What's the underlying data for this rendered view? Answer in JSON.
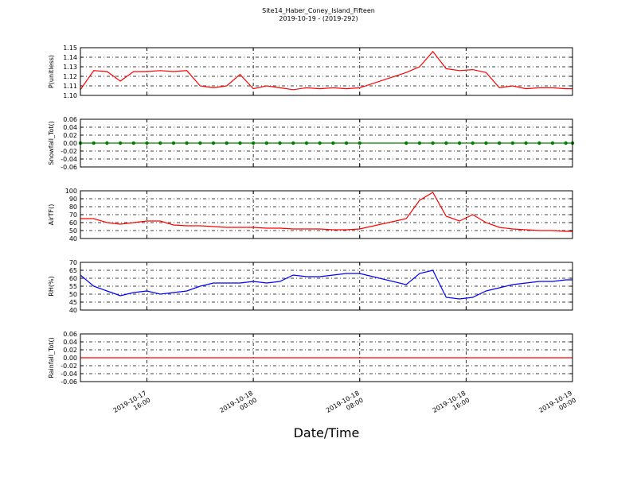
{
  "figure": {
    "title": "Site14_Haber_Coney_Island_Fifteen",
    "subtitle": "2019-10-19 - (2019-292)",
    "xlabel": "Date/Time",
    "xlim": [
      "2019-10-17 11:00",
      "2019-10-19 00:00"
    ],
    "xticks": [
      {
        "value": "2019-10-17 16:00",
        "label": "2019-10-17\n16:00"
      },
      {
        "value": "2019-10-18 00:00",
        "label": "2019-10-18\n00:00"
      },
      {
        "value": "2019-10-18 08:00",
        "label": "2019-10-18\n08:00"
      },
      {
        "value": "2019-10-18 16:00",
        "label": "2019-10-18\n16:00"
      },
      {
        "value": "2019-10-19 00:00",
        "label": "2019-10-19\n00:00"
      }
    ],
    "grid": true
  },
  "chart_data": [
    {
      "type": "line",
      "ylabel": "P(unitless)",
      "color": "#ff0000",
      "marker": false,
      "x": [
        "2019-10-17 11:00",
        "2019-10-17 12:00",
        "2019-10-17 13:00",
        "2019-10-17 14:00",
        "2019-10-17 15:00",
        "2019-10-17 16:00",
        "2019-10-17 17:00",
        "2019-10-17 18:00",
        "2019-10-17 19:00",
        "2019-10-17 20:00",
        "2019-10-17 21:00",
        "2019-10-17 22:00",
        "2019-10-17 23:00",
        "2019-10-18 00:00",
        "2019-10-18 01:00",
        "2019-10-18 02:00",
        "2019-10-18 03:00",
        "2019-10-18 04:00",
        "2019-10-18 05:00",
        "2019-10-18 06:00",
        "2019-10-18 07:00",
        "2019-10-18 08:00",
        "2019-10-18 11:30",
        "2019-10-18 12:30",
        "2019-10-18 13:30",
        "2019-10-18 14:30",
        "2019-10-18 15:30",
        "2019-10-18 16:30",
        "2019-10-18 17:30",
        "2019-10-18 18:30",
        "2019-10-18 19:30",
        "2019-10-18 20:30",
        "2019-10-18 21:30",
        "2019-10-18 22:30",
        "2019-10-18 23:30",
        "2019-10-19 00:00"
      ],
      "values": [
        1.106,
        1.126,
        1.125,
        1.115,
        1.125,
        1.125,
        1.126,
        1.125,
        1.126,
        1.11,
        1.108,
        1.11,
        1.122,
        1.107,
        1.11,
        1.108,
        1.106,
        1.108,
        1.107,
        1.108,
        1.107,
        1.108,
        1.124,
        1.13,
        1.146,
        1.128,
        1.126,
        1.127,
        1.124,
        1.108,
        1.11,
        1.107,
        1.108,
        1.108,
        1.107,
        1.107
      ],
      "ylim": [
        1.1,
        1.15
      ],
      "yticks": [
        {
          "value": 1.1,
          "label": "1.10"
        },
        {
          "value": 1.11,
          "label": "1.11"
        },
        {
          "value": 1.12,
          "label": "1.12"
        },
        {
          "value": 1.13,
          "label": "1.13"
        },
        {
          "value": 1.14,
          "label": "1.14"
        },
        {
          "value": 1.15,
          "label": "1.15"
        }
      ]
    },
    {
      "type": "line",
      "ylabel": "Snowfall_Tot()",
      "color": "#008000",
      "marker": true,
      "x": [
        "2019-10-17 11:00",
        "2019-10-17 12:00",
        "2019-10-17 13:00",
        "2019-10-17 14:00",
        "2019-10-17 15:00",
        "2019-10-17 16:00",
        "2019-10-17 17:00",
        "2019-10-17 18:00",
        "2019-10-17 19:00",
        "2019-10-17 20:00",
        "2019-10-17 21:00",
        "2019-10-17 22:00",
        "2019-10-17 23:00",
        "2019-10-18 00:00",
        "2019-10-18 01:00",
        "2019-10-18 02:00",
        "2019-10-18 03:00",
        "2019-10-18 04:00",
        "2019-10-18 05:00",
        "2019-10-18 06:00",
        "2019-10-18 07:00",
        "2019-10-18 08:00",
        "2019-10-18 11:30",
        "2019-10-18 12:30",
        "2019-10-18 13:30",
        "2019-10-18 14:30",
        "2019-10-18 15:30",
        "2019-10-18 16:30",
        "2019-10-18 17:30",
        "2019-10-18 18:30",
        "2019-10-18 19:30",
        "2019-10-18 20:30",
        "2019-10-18 21:30",
        "2019-10-18 22:30",
        "2019-10-18 23:30",
        "2019-10-19 00:00"
      ],
      "values": [
        0,
        0,
        0,
        0,
        0,
        0,
        0,
        0,
        0,
        0,
        0,
        0,
        0,
        0,
        0,
        0,
        0,
        0,
        0,
        0,
        0,
        0,
        0,
        0,
        0,
        0,
        0,
        0,
        0,
        0,
        0,
        0,
        0,
        0,
        0,
        0
      ],
      "ylim": [
        -0.06,
        0.06
      ],
      "yticks": [
        {
          "value": -0.06,
          "label": "-0.06"
        },
        {
          "value": -0.04,
          "label": "-0.04"
        },
        {
          "value": -0.02,
          "label": "-0.02"
        },
        {
          "value": 0,
          "label": "0.00"
        },
        {
          "value": 0.02,
          "label": "0.02"
        },
        {
          "value": 0.04,
          "label": "0.04"
        },
        {
          "value": 0.06,
          "label": "0.06"
        }
      ]
    },
    {
      "type": "line",
      "ylabel": "AirTF()",
      "color": "#ff0000",
      "marker": false,
      "x": [
        "2019-10-17 11:00",
        "2019-10-17 12:00",
        "2019-10-17 13:00",
        "2019-10-17 14:00",
        "2019-10-17 15:00",
        "2019-10-17 16:00",
        "2019-10-17 17:00",
        "2019-10-17 18:00",
        "2019-10-17 19:00",
        "2019-10-17 20:00",
        "2019-10-17 21:00",
        "2019-10-17 22:00",
        "2019-10-17 23:00",
        "2019-10-18 00:00",
        "2019-10-18 01:00",
        "2019-10-18 02:00",
        "2019-10-18 03:00",
        "2019-10-18 04:00",
        "2019-10-18 05:00",
        "2019-10-18 06:00",
        "2019-10-18 07:00",
        "2019-10-18 08:00",
        "2019-10-18 11:30",
        "2019-10-18 12:30",
        "2019-10-18 13:30",
        "2019-10-18 14:30",
        "2019-10-18 15:30",
        "2019-10-18 16:30",
        "2019-10-18 17:30",
        "2019-10-18 18:30",
        "2019-10-18 19:30",
        "2019-10-18 20:30",
        "2019-10-18 21:30",
        "2019-10-18 22:30",
        "2019-10-18 23:30",
        "2019-10-19 00:00"
      ],
      "values": [
        65,
        65,
        60,
        58,
        60,
        62,
        62,
        57,
        56,
        56,
        55,
        54,
        54,
        54,
        53,
        53,
        52,
        52,
        52,
        51,
        51,
        52,
        65,
        88,
        98,
        68,
        62,
        70,
        60,
        54,
        52,
        51,
        50,
        50,
        49,
        49
      ],
      "ylim": [
        40,
        100
      ],
      "yticks": [
        40,
        50,
        60,
        70,
        80,
        90,
        100
      ]
    },
    {
      "type": "line",
      "ylabel": "RH(%)",
      "color": "#0000ff",
      "marker": false,
      "x": [
        "2019-10-17 11:00",
        "2019-10-17 12:00",
        "2019-10-17 13:00",
        "2019-10-17 14:00",
        "2019-10-17 15:00",
        "2019-10-17 16:00",
        "2019-10-17 17:00",
        "2019-10-17 18:00",
        "2019-10-17 19:00",
        "2019-10-17 20:00",
        "2019-10-17 21:00",
        "2019-10-17 22:00",
        "2019-10-17 23:00",
        "2019-10-18 00:00",
        "2019-10-18 01:00",
        "2019-10-18 02:00",
        "2019-10-18 03:00",
        "2019-10-18 04:00",
        "2019-10-18 05:00",
        "2019-10-18 06:00",
        "2019-10-18 07:00",
        "2019-10-18 08:00",
        "2019-10-18 11:30",
        "2019-10-18 12:30",
        "2019-10-18 13:30",
        "2019-10-18 14:30",
        "2019-10-18 15:30",
        "2019-10-18 16:30",
        "2019-10-18 17:30",
        "2019-10-18 18:30",
        "2019-10-18 19:30",
        "2019-10-18 20:30",
        "2019-10-18 21:30",
        "2019-10-18 22:30",
        "2019-10-18 23:30",
        "2019-10-19 00:00"
      ],
      "values": [
        62,
        55,
        52,
        49,
        51,
        52,
        50,
        51,
        52,
        55,
        57,
        57,
        57,
        58,
        57,
        58,
        62,
        61,
        61,
        62,
        63,
        63,
        56,
        63,
        65,
        48,
        47,
        48,
        52,
        54,
        56,
        57,
        58,
        58,
        59,
        59
      ],
      "ylim": [
        40,
        70
      ],
      "yticks": [
        40,
        45,
        50,
        55,
        60,
        65,
        70
      ]
    },
    {
      "type": "line",
      "ylabel": "Rainfall_Tot()",
      "color": "#ff0000",
      "marker": false,
      "x": [
        "2019-10-17 11:00",
        "2019-10-17 12:00",
        "2019-10-17 13:00",
        "2019-10-17 14:00",
        "2019-10-17 15:00",
        "2019-10-17 16:00",
        "2019-10-17 17:00",
        "2019-10-17 18:00",
        "2019-10-17 19:00",
        "2019-10-17 20:00",
        "2019-10-17 21:00",
        "2019-10-17 22:00",
        "2019-10-17 23:00",
        "2019-10-18 00:00",
        "2019-10-18 01:00",
        "2019-10-18 02:00",
        "2019-10-18 03:00",
        "2019-10-18 04:00",
        "2019-10-18 05:00",
        "2019-10-18 06:00",
        "2019-10-18 07:00",
        "2019-10-18 08:00",
        "2019-10-18 11:30",
        "2019-10-18 12:30",
        "2019-10-18 13:30",
        "2019-10-18 14:30",
        "2019-10-18 15:30",
        "2019-10-18 16:30",
        "2019-10-18 17:30",
        "2019-10-18 18:30",
        "2019-10-18 19:30",
        "2019-10-18 20:30",
        "2019-10-18 21:30",
        "2019-10-18 22:30",
        "2019-10-18 23:30",
        "2019-10-19 00:00"
      ],
      "values": [
        0,
        0,
        0,
        0,
        0,
        0,
        0,
        0,
        0,
        0,
        0,
        0,
        0,
        0,
        0,
        0,
        0,
        0,
        0,
        0,
        0,
        0,
        0,
        0,
        0,
        0,
        0,
        0,
        0,
        0,
        0,
        0,
        0,
        0,
        0,
        0
      ],
      "ylim": [
        -0.06,
        0.06
      ],
      "yticks": [
        {
          "value": -0.06,
          "label": "-0.06"
        },
        {
          "value": -0.04,
          "label": "-0.04"
        },
        {
          "value": -0.02,
          "label": "-0.02"
        },
        {
          "value": 0,
          "label": "0.00"
        },
        {
          "value": 0.02,
          "label": "0.02"
        },
        {
          "value": 0.04,
          "label": "0.04"
        },
        {
          "value": 0.06,
          "label": "0.06"
        }
      ]
    }
  ]
}
